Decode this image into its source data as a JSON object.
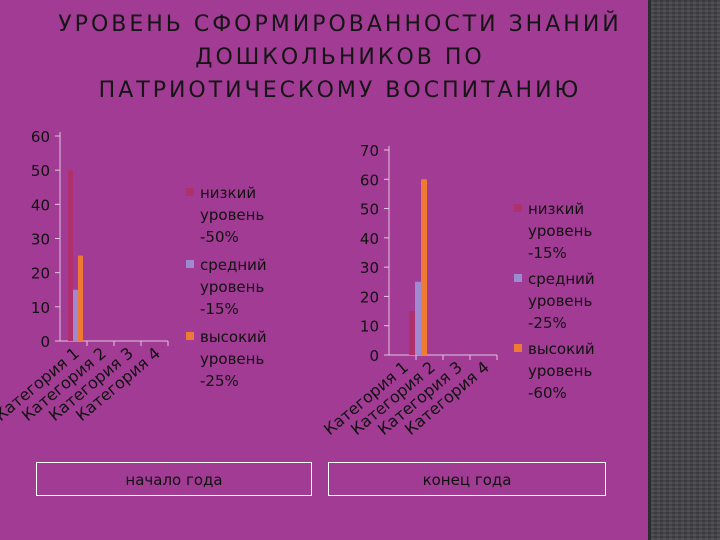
{
  "slide": {
    "title_lines": [
      "УРОВЕНЬ СФОРМИРОВАННОСТИ ЗНАНИЙ",
      "ДОШКОЛЬНИКОВ ПО",
      "ПАТРИОТИЧЕСКОМУ ВОСПИТАНИЮ"
    ],
    "caption_left": "начало года",
    "caption_right": "конец года"
  },
  "colors": {
    "background": "#a13b94",
    "series_low": "#b0306e",
    "series_mid": "#9e8ad0",
    "series_high": "#ef7a34",
    "axis": "#e3c6df",
    "text": "#111111"
  },
  "chart_data": [
    {
      "type": "bar",
      "categories": [
        "Категория 1",
        "Категория 2",
        "Категория 3",
        "Категория 4"
      ],
      "series": [
        {
          "name": "низкий уровень -50%",
          "values": [
            50,
            null,
            null,
            null
          ]
        },
        {
          "name": "средний уровень -15%",
          "values": [
            15,
            null,
            null,
            null
          ]
        },
        {
          "name": "высокий уровень -25%",
          "values": [
            25,
            null,
            null,
            null
          ]
        }
      ],
      "ylim": [
        0,
        60
      ],
      "yticks": [
        0,
        10,
        20,
        30,
        40,
        50,
        60
      ],
      "grid": false,
      "legend": "right"
    },
    {
      "type": "bar",
      "categories": [
        "Категория 1",
        "Категория 2",
        "Категория 3",
        "Категория 4"
      ],
      "series": [
        {
          "name": "низкий уровень -15%",
          "values": [
            15,
            null,
            null,
            null
          ]
        },
        {
          "name": "средний уровень -25%",
          "values": [
            25,
            null,
            null,
            null
          ]
        },
        {
          "name": "высокий уровень -60%",
          "values": [
            60,
            null,
            null,
            null
          ]
        }
      ],
      "ylim": [
        0,
        70
      ],
      "yticks": [
        0,
        10,
        20,
        30,
        40,
        50,
        60,
        70
      ],
      "grid": false,
      "legend": "right"
    }
  ]
}
